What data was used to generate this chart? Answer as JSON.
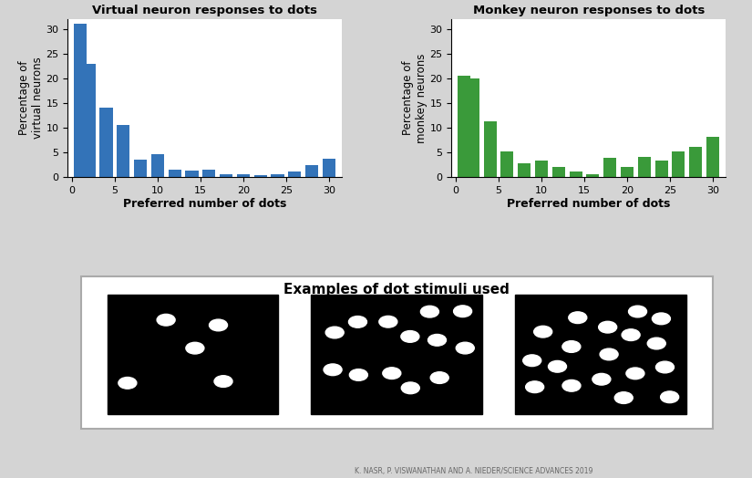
{
  "virtual_x": [
    1,
    2,
    4,
    6,
    8,
    10,
    12,
    14,
    16,
    18,
    20,
    22,
    24,
    26,
    28,
    30
  ],
  "virtual_y": [
    31,
    23,
    14,
    10.5,
    3.5,
    4.7,
    1.6,
    1.3,
    1.6,
    0.6,
    0.6,
    0.4,
    0.6,
    1.1,
    2.4,
    3.7
  ],
  "monkey_x": [
    1,
    2,
    4,
    6,
    8,
    10,
    12,
    14,
    16,
    18,
    20,
    22,
    24,
    26,
    28,
    30
  ],
  "monkey_y": [
    20.5,
    20,
    11.4,
    5.2,
    2.8,
    3.4,
    2.0,
    1.2,
    0.6,
    4.0,
    2.0,
    4.1,
    3.4,
    5.2,
    6.1,
    8.1
  ],
  "bar_width": 1.5,
  "x_ticks": [
    0,
    5,
    10,
    15,
    20,
    25,
    30
  ],
  "y_ticks": [
    0,
    5,
    10,
    15,
    20,
    25,
    30
  ],
  "ylim": [
    0,
    32
  ],
  "xlim": [
    -0.5,
    31.5
  ],
  "virtual_color": "#3373b8",
  "monkey_color": "#3a9a3a",
  "title_virtual": "Virtual neuron responses to dots",
  "title_monkey": "Monkey neuron responses to dots",
  "ylabel_virtual": "Percentage of\nvirtual neurons",
  "ylabel_monkey": "Percentage of\nmonkey neurons",
  "xlabel": "Preferred number of dots",
  "bottom_title": "Examples of dot stimuli used",
  "bg_color": "#d4d4d4",
  "credit": "K. NASR, P. VISWANATHAN AND A. NIEDER/SCIENCE ADVANCES 2019",
  "red_bar_color": "#cc2200"
}
